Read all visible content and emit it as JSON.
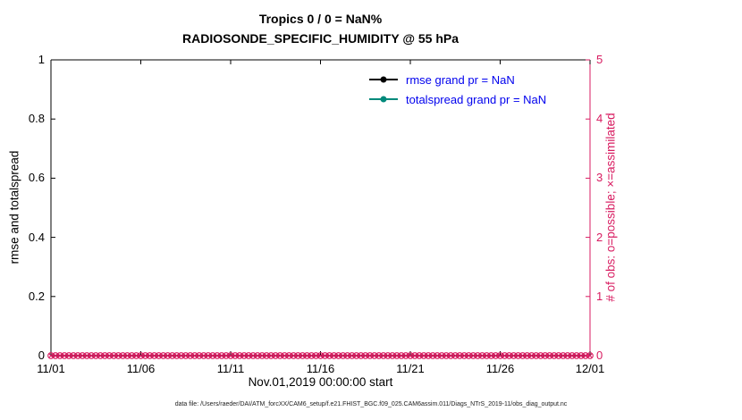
{
  "title": {
    "line1": "Tropics 0 / 0 = NaN%",
    "line2": "RADIOSONDE_SPECIFIC_HUMIDITY @ 55 hPa"
  },
  "footer": "data file: /Users/raeder/DAI/ATM_forcXX/CAM6_setup/f.e21.FHIST_BGC.f09_025.CAM6assim.011/Diags_NTrS_2019-11/obs_diag_output.nc",
  "colors": {
    "axis_left": "#000000",
    "axis_right": "#d81b60",
    "pink": "#d81b60",
    "teal": "#00897b",
    "legend_text": "#0000ee"
  },
  "chart_data": {
    "type": "line",
    "title": "Tropics 0 / 0 = NaN%",
    "subtitle": "RADIOSONDE_SPECIFIC_HUMIDITY @ 55 hPa",
    "xlabel": "Nov.01,2019 00:00:00 start",
    "ylabel_left": "rmse and totalspread",
    "ylabel_right": "# of obs: o=possible; ×=assimilated",
    "x_ticks": [
      "11/01",
      "11/06",
      "11/11",
      "11/16",
      "11/21",
      "11/26",
      "12/01"
    ],
    "x_range_days": [
      0,
      30
    ],
    "y_left_ticks": [
      "0",
      "0.2",
      "0.4",
      "0.6",
      "0.8",
      "1"
    ],
    "y_left_values": [
      0,
      0.2,
      0.4,
      0.6,
      0.8,
      1
    ],
    "y_left_range": [
      0,
      1
    ],
    "y_right_ticks": [
      "0",
      "1",
      "2",
      "3",
      "4",
      "5"
    ],
    "y_right_values": [
      0,
      1,
      2,
      3,
      4,
      5
    ],
    "y_right_range": [
      0,
      5
    ],
    "grid": false,
    "legend_position": "top-right-inside",
    "series": [
      {
        "name": "rmse grand pr = NaN",
        "color": "#000000",
        "marker": "dot",
        "values": []
      },
      {
        "name": "totalspread grand pr = NaN",
        "color": "#00897b",
        "marker": "dot",
        "values": []
      },
      {
        "name": "possible obs (o)",
        "color": "#d81b60",
        "marker": "o",
        "value_constant": 0,
        "n_points": 121
      },
      {
        "name": "assimilated obs (x)",
        "color": "#d81b60",
        "marker": "x",
        "value_constant": 0,
        "n_points": 121
      }
    ],
    "legend": [
      {
        "label": "rmse grand pr = NaN",
        "marker_color": "#000000",
        "text_color": "#0000ee"
      },
      {
        "label": "totalspread grand pr = NaN",
        "marker_color": "#00897b",
        "text_color": "#0000ee"
      }
    ]
  }
}
